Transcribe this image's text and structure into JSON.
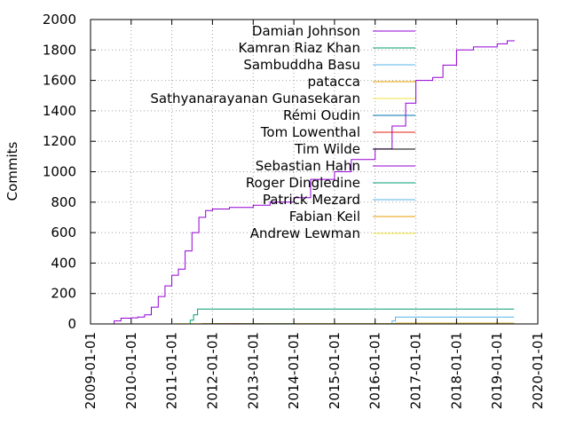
{
  "chart_data": {
    "type": "line",
    "ylabel": "Commits",
    "xlim": [
      "2009-01-01",
      "2020-01-01"
    ],
    "ylim": [
      0,
      2000
    ],
    "grid": true,
    "legend_placement": "top-center",
    "x_ticks": [
      "2009-01-01",
      "2010-01-01",
      "2011-01-01",
      "2012-01-01",
      "2013-01-01",
      "2014-01-01",
      "2015-01-01",
      "2016-01-01",
      "2017-01-01",
      "2018-01-01",
      "2019-01-01",
      "2020-01-01"
    ],
    "y_ticks": [
      0,
      200,
      400,
      600,
      800,
      1000,
      1200,
      1400,
      1600,
      1800,
      2000
    ],
    "series": [
      {
        "name": "Damian Johnson",
        "color": "#9400d3",
        "points": [
          [
            "2009-05-01",
            0
          ],
          [
            "2009-08-01",
            20
          ],
          [
            "2009-10-01",
            38
          ],
          [
            "2010-01-01",
            40
          ],
          [
            "2010-03-01",
            45
          ],
          [
            "2010-05-01",
            60
          ],
          [
            "2010-07-01",
            110
          ],
          [
            "2010-09-01",
            180
          ],
          [
            "2010-11-01",
            250
          ],
          [
            "2011-01-01",
            320
          ],
          [
            "2011-03-01",
            360
          ],
          [
            "2011-05-01",
            480
          ],
          [
            "2011-07-01",
            600
          ],
          [
            "2011-09-01",
            700
          ],
          [
            "2011-11-01",
            745
          ],
          [
            "2012-01-01",
            755
          ],
          [
            "2012-06-01",
            765
          ],
          [
            "2013-01-01",
            780
          ],
          [
            "2013-06-01",
            800
          ],
          [
            "2014-01-01",
            830
          ],
          [
            "2014-06-01",
            950
          ],
          [
            "2015-01-01",
            1000
          ],
          [
            "2015-06-01",
            1080
          ],
          [
            "2016-01-01",
            1150
          ],
          [
            "2016-06-01",
            1300
          ],
          [
            "2016-10-01",
            1450
          ],
          [
            "2017-01-01",
            1600
          ],
          [
            "2017-06-01",
            1620
          ],
          [
            "2017-09-01",
            1700
          ],
          [
            "2018-01-01",
            1800
          ],
          [
            "2018-06-01",
            1820
          ],
          [
            "2019-01-01",
            1840
          ],
          [
            "2019-04-01",
            1860
          ],
          [
            "2019-06-01",
            1865
          ]
        ]
      },
      {
        "name": "Kamran Riaz Khan",
        "color": "#009e73",
        "points": [
          [
            "2011-05-15",
            0
          ],
          [
            "2011-06-15",
            25
          ],
          [
            "2011-07-15",
            60
          ],
          [
            "2011-08-20",
            98
          ],
          [
            "2019-06-01",
            98
          ]
        ]
      },
      {
        "name": "Sambuddha Basu",
        "color": "#56b4e9",
        "points": [
          [
            "2016-05-01",
            0
          ],
          [
            "2016-06-01",
            20
          ],
          [
            "2016-07-01",
            45
          ],
          [
            "2019-06-01",
            45
          ]
        ]
      },
      {
        "name": "patacca",
        "color": "#e69f00",
        "points": [
          [
            "2016-06-01",
            0
          ],
          [
            "2016-07-01",
            5
          ],
          [
            "2019-06-01",
            5
          ]
        ]
      },
      {
        "name": "Sathyanarayanan Gunasekaran",
        "color": "#f0e442",
        "points": [
          [
            "2012-06-01",
            0
          ],
          [
            "2012-07-01",
            3
          ],
          [
            "2019-06-01",
            3
          ]
        ]
      },
      {
        "name": "Rémi Oudin",
        "color": "#0072b2",
        "points": [
          [
            "2016-01-01",
            0
          ],
          [
            "2016-03-01",
            2
          ],
          [
            "2019-06-01",
            2
          ]
        ]
      },
      {
        "name": "Tom Lowenthal",
        "color": "#e51e10",
        "points": [
          [
            "2012-01-01",
            0
          ],
          [
            "2012-02-01",
            1
          ],
          [
            "2019-06-01",
            1
          ]
        ]
      },
      {
        "name": "Tim Wilde",
        "color": "#000000",
        "points": [
          [
            "2011-09-01",
            0
          ],
          [
            "2011-10-01",
            1
          ],
          [
            "2019-06-01",
            1
          ]
        ]
      },
      {
        "name": "Sebastian Hahn",
        "color": "#9400d3",
        "points": [
          [
            "2012-05-01",
            0
          ],
          [
            "2012-06-01",
            1
          ],
          [
            "2019-06-01",
            1
          ]
        ]
      },
      {
        "name": "Roger Dingledine",
        "color": "#009e73",
        "points": [
          [
            "2012-09-01",
            0
          ],
          [
            "2012-10-01",
            1
          ],
          [
            "2019-06-01",
            1
          ]
        ]
      },
      {
        "name": "Patrick Mezard",
        "color": "#56b4e9",
        "points": [
          [
            "2013-03-01",
            0
          ],
          [
            "2013-04-01",
            1
          ],
          [
            "2019-06-01",
            1
          ]
        ]
      },
      {
        "name": "Fabian Keil",
        "color": "#e69f00",
        "points": [
          [
            "2014-01-01",
            0
          ],
          [
            "2014-02-01",
            1
          ],
          [
            "2019-06-01",
            1
          ]
        ]
      },
      {
        "name": "Andrew Lewman",
        "color": "#f0e442",
        "points": [
          [
            "2011-01-01",
            0
          ],
          [
            "2011-02-01",
            1
          ],
          [
            "2019-06-01",
            1
          ]
        ]
      }
    ]
  }
}
